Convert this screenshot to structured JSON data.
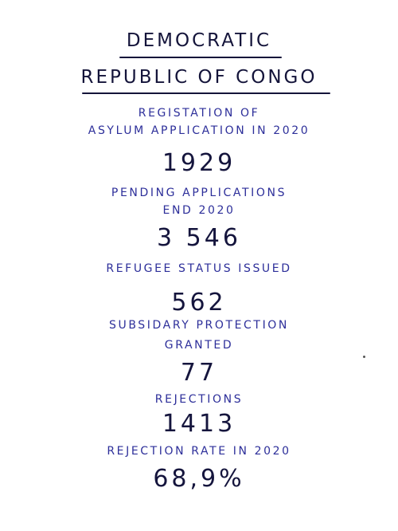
{
  "title": {
    "line1": "DEMOCRATIC",
    "line2": "REPUBLIC OF CONGO"
  },
  "stats": [
    {
      "label_lines": [
        "REGISTATION OF",
        "ASYLUM APPLICATION IN 2020"
      ],
      "value": "1929"
    },
    {
      "label_lines": [
        "PENDING APPLICATIONS",
        "END 2020"
      ],
      "value": "3 546"
    },
    {
      "label_lines": [
        "REFUGEE STATUS ISSUED"
      ],
      "value": "562"
    },
    {
      "label_lines": [
        "SUBSIDARY PROTECTION",
        "GRANTED"
      ],
      "value": "77"
    },
    {
      "label_lines": [
        "REJECTIONS"
      ],
      "value": "1413"
    },
    {
      "label_lines": [
        "REJECTION RATE IN 2020"
      ],
      "value": "68,9%"
    }
  ]
}
